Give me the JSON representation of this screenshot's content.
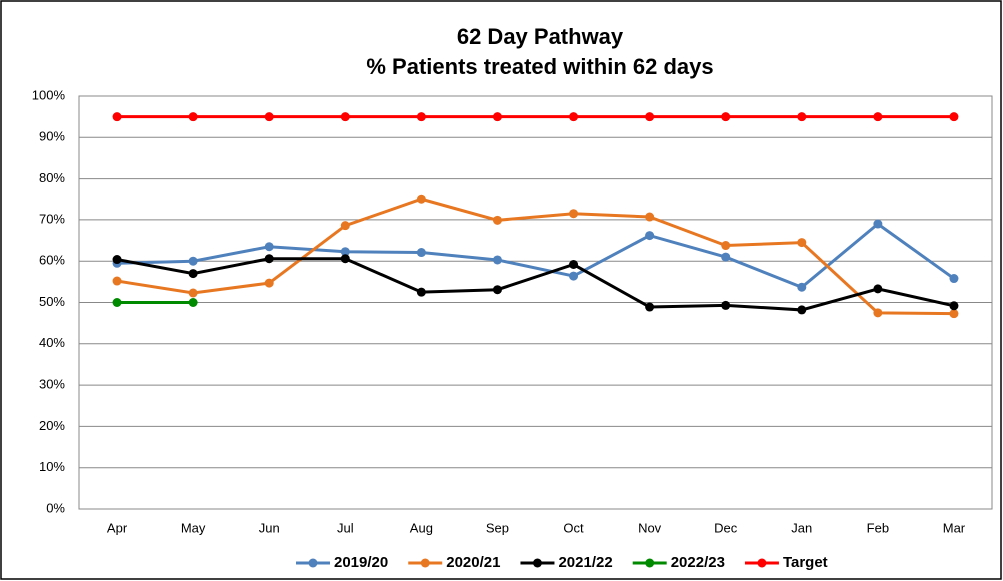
{
  "chart_data": {
    "type": "line",
    "title": "62 Day Pathway",
    "subtitle": "% Patients treated within 62 days",
    "categories": [
      "Apr",
      "May",
      "Jun",
      "Jul",
      "Aug",
      "Sep",
      "Oct",
      "Nov",
      "Dec",
      "Jan",
      "Feb",
      "Mar"
    ],
    "series": [
      {
        "name": "2019/20",
        "color": "#4f81bd",
        "values": [
          59.5,
          60,
          63.5,
          62.3,
          62.1,
          60.3,
          56.4,
          66.2,
          61,
          53.7,
          69,
          55.8
        ]
      },
      {
        "name": "2020/21",
        "color": "#e87722",
        "values": [
          55.2,
          52.3,
          54.7,
          68.6,
          75,
          69.9,
          71.5,
          70.7,
          63.8,
          64.5,
          47.5,
          47.3
        ]
      },
      {
        "name": "2021/22",
        "color": "#000000",
        "values": [
          60.4,
          57,
          60.6,
          60.6,
          52.5,
          53.1,
          59.2,
          48.9,
          49.3,
          48.2,
          53.3,
          49.2
        ]
      },
      {
        "name": "2022/23",
        "color": "#008a00",
        "values": [
          50,
          50,
          null,
          null,
          null,
          null,
          null,
          null,
          null,
          null,
          null,
          null
        ]
      },
      {
        "name": "Target",
        "color": "#ff0000",
        "values": [
          95,
          95,
          95,
          95,
          95,
          95,
          95,
          95,
          95,
          95,
          95,
          95
        ]
      }
    ],
    "ylim": [
      0,
      100
    ],
    "yticks": [
      {
        "value": 0,
        "label": "0%"
      },
      {
        "value": 10,
        "label": "10%"
      },
      {
        "value": 20,
        "label": "20%"
      },
      {
        "value": 30,
        "label": "30%"
      },
      {
        "value": 40,
        "label": "40%"
      },
      {
        "value": 50,
        "label": "50%"
      },
      {
        "value": 60,
        "label": "60%"
      },
      {
        "value": 70,
        "label": "70%"
      },
      {
        "value": 80,
        "label": "80%"
      },
      {
        "value": 90,
        "label": "90%"
      },
      {
        "value": 100,
        "label": "100%"
      }
    ],
    "grid": true,
    "legend": "bottom"
  }
}
